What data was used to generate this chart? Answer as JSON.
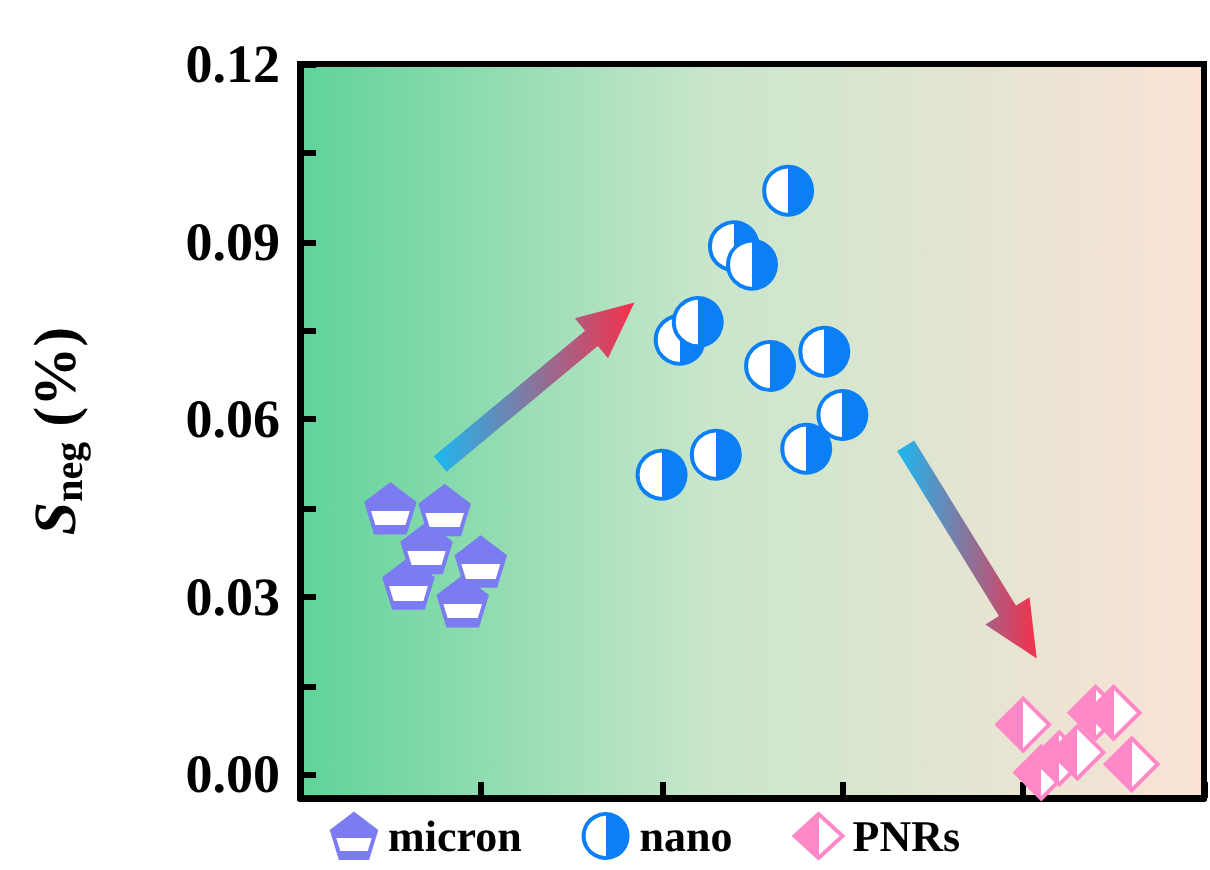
{
  "chart_data": {
    "type": "scatter",
    "ylabel": "S$_{neg}$ (%)",
    "categories": [
      null,
      null,
      null,
      null,
      null,
      null,
      null,
      null,
      null,
      null,
      null,
      null,
      null,
      null,
      null,
      null,
      null,
      null,
      null,
      null,
      null,
      null,
      null,
      null,
      null,
      null,
      null,
      null,
      null,
      null,
      null,
      null,
      null,
      null,
      null,
      null,
      null,
      null,
      null,
      null,
      null,
      null,
      null,
      null,
      null,
      null,
      null,
      null,
      null,
      null,
      null
    ],
    "ylim": [
      -0.004,
      0.12
    ],
    "yticks": [
      {
        "value": 0,
        "label": "0.00"
      },
      {
        "value": 0.015,
        "label": null
      },
      0.03,
      {
        "value": 0.045,
        "label": null
      },
      0.06,
      {
        "value": 0.075,
        "label": null
      },
      0.09,
      {
        "value": 0.105,
        "label": null
      },
      0.12
    ],
    "tick_labels": "y",
    "grid": false,
    "legend": "bottom",
    "series": [
      {
        "name": "micron",
        "color": "#7b7cf2",
        "values": [
          null,
          null,
          null,
          null,
          null,
          0.0449,
          0.0322,
          0.0382,
          0.0446,
          0.0292,
          0.0359,
          null,
          null,
          null,
          null,
          null,
          null,
          null,
          null,
          null,
          null,
          null,
          null,
          null,
          null,
          null,
          null,
          null,
          null,
          null,
          null,
          null,
          null,
          null,
          null,
          null,
          null,
          null,
          null,
          null,
          null,
          null,
          null,
          null,
          null,
          null,
          null,
          null,
          null,
          null,
          null
        ]
      },
      {
        "name": "nano",
        "color": "#0b7ff5",
        "marker": "circle",
        "values": [
          null,
          null,
          null,
          null,
          null,
          null,
          null,
          null,
          null,
          null,
          null,
          null,
          null,
          null,
          null,
          null,
          null,
          null,
          null,
          null,
          0.0506,
          0.0734,
          0.0764,
          0.054,
          0.0892,
          0.0861,
          0.069,
          0.0986,
          0.055,
          0.0714,
          0.0607,
          null,
          null,
          null,
          null,
          null,
          null,
          null,
          null,
          null,
          null,
          null,
          null,
          null,
          null,
          null,
          null,
          null,
          null,
          null,
          null
        ]
      },
      {
        "name": "PNRs",
        "color": "#ff88c8",
        "marker": "diamond",
        "values": [
          null,
          null,
          null,
          null,
          null,
          null,
          null,
          null,
          null,
          null,
          null,
          null,
          null,
          null,
          null,
          null,
          null,
          null,
          null,
          null,
          null,
          null,
          null,
          null,
          null,
          null,
          null,
          null,
          null,
          null,
          null,
          null,
          null,
          null,
          null,
          null,
          null,
          null,
          null,
          null,
          0.0084,
          0.0003,
          0.0027,
          0.0037,
          0.0104,
          0.0104,
          0.0017,
          null,
          null,
          null,
          null
        ]
      }
    ]
  }
}
